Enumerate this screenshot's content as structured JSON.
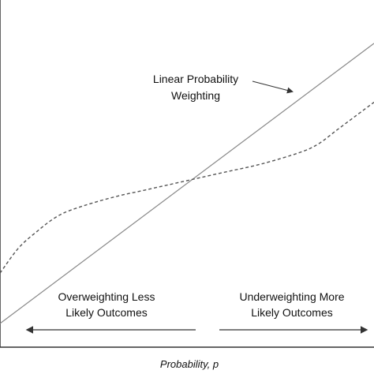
{
  "chart_data": {
    "type": "line",
    "title": "",
    "xlabel": "Probability, p",
    "ylabel": "",
    "xlim": [
      0,
      1
    ],
    "ylim": [
      0,
      1
    ],
    "grid": false,
    "series": [
      {
        "style": "solid",
        "x": [
          0,
          1
        ],
        "y": [
          0,
          1
        ]
      },
      {
        "style": "dashed",
        "x": [
          0,
          0.05,
          0.1,
          0.15,
          0.2,
          0.3,
          0.4,
          0.5,
          0.6,
          0.7,
          0.8,
          0.85,
          0.9,
          0.95,
          1.0
        ],
        "y": [
          0.18,
          0.27,
          0.33,
          0.38,
          0.41,
          0.45,
          0.48,
          0.51,
          0.54,
          0.57,
          0.61,
          0.64,
          0.69,
          0.74,
          0.79
        ]
      }
    ],
    "annotations": {
      "linear_label": [
        "Linear Probability",
        "Weighting"
      ],
      "left_label": [
        "Overweighting Less",
        "Likely Outcomes"
      ],
      "right_label": [
        "Underweighting More",
        "Likely Outcomes"
      ]
    }
  },
  "colors": {
    "axis": "#333333",
    "linear": "#888888",
    "weighting": "#555555",
    "text": "#111111"
  }
}
